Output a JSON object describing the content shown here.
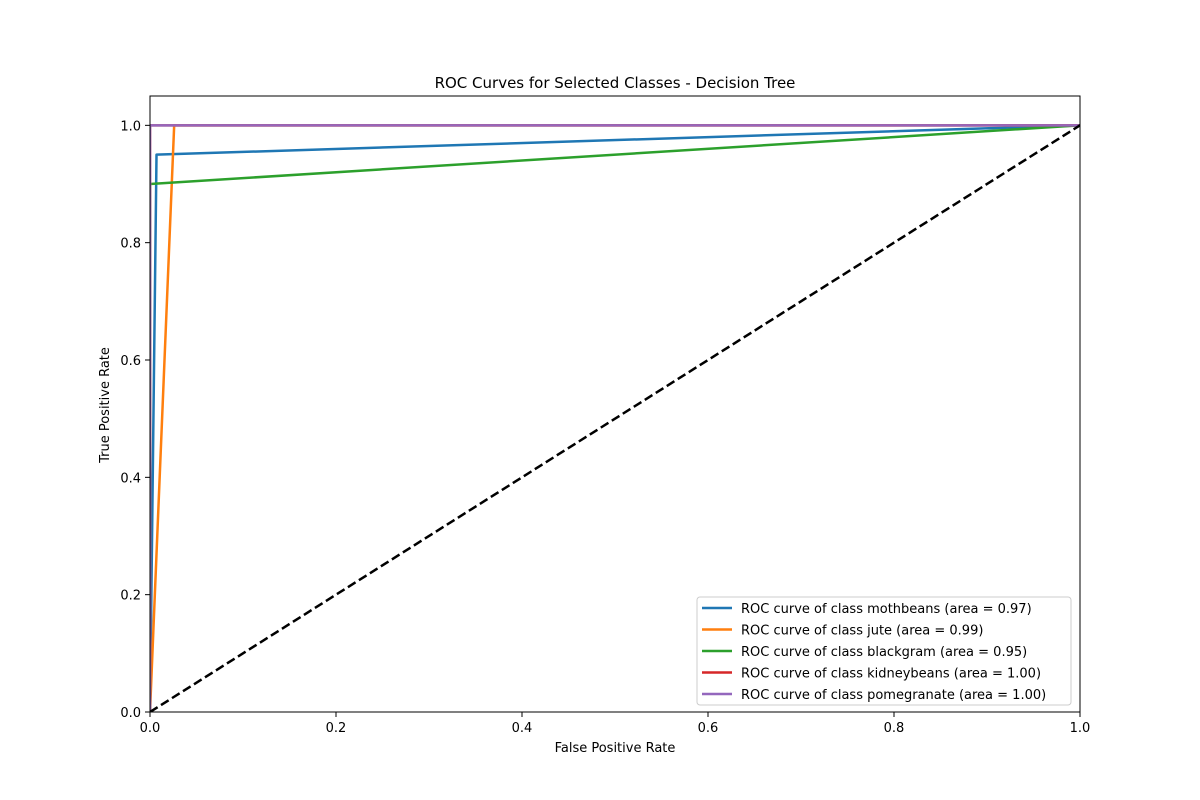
{
  "chart_data": {
    "type": "line",
    "title": "ROC Curves for Selected Classes - Decision Tree",
    "xlabel": "False Positive Rate",
    "ylabel": "True Positive Rate",
    "xlim": [
      0.0,
      1.0
    ],
    "ylim": [
      0.0,
      1.05
    ],
    "x_ticks": [
      0.0,
      0.2,
      0.4,
      0.6,
      0.8,
      1.0
    ],
    "y_ticks": [
      0.0,
      0.2,
      0.4,
      0.6,
      0.8,
      1.0
    ],
    "x_tick_labels": [
      "0.0",
      "0.2",
      "0.4",
      "0.6",
      "0.8",
      "1.0"
    ],
    "y_tick_labels": [
      "0.0",
      "0.2",
      "0.4",
      "0.6",
      "0.8",
      "1.0"
    ],
    "grid": false,
    "legend_position": "lower-right",
    "series": [
      {
        "name": "ROC curve of class mothbeans (area = 0.97)",
        "color": "#1f77b4",
        "x": [
          0.0,
          0.007,
          1.0
        ],
        "y": [
          0.0,
          0.95,
          1.0
        ]
      },
      {
        "name": "ROC curve of class jute (area = 0.99)",
        "color": "#ff7f0e",
        "x": [
          0.0,
          0.026,
          1.0
        ],
        "y": [
          0.0,
          1.0,
          1.0
        ]
      },
      {
        "name": "ROC curve of class blackgram (area = 0.95)",
        "color": "#2ca02c",
        "x": [
          0.0,
          0.0,
          1.0
        ],
        "y": [
          0.0,
          0.9,
          1.0
        ]
      },
      {
        "name": "ROC curve of class kidneybeans (area = 1.00)",
        "color": "#d62728",
        "x": [
          0.0,
          0.0,
          1.0
        ],
        "y": [
          0.0,
          1.0,
          1.0
        ]
      },
      {
        "name": "ROC curve of class pomegranate (area = 1.00)",
        "color": "#9467bd",
        "x": [
          0.0,
          0.0,
          1.0
        ],
        "y": [
          0.0,
          1.0,
          1.0
        ]
      }
    ],
    "reference_line": {
      "x": [
        0.0,
        1.0
      ],
      "y": [
        0.0,
        1.0
      ],
      "color": "#000000",
      "style": "dashed"
    }
  }
}
